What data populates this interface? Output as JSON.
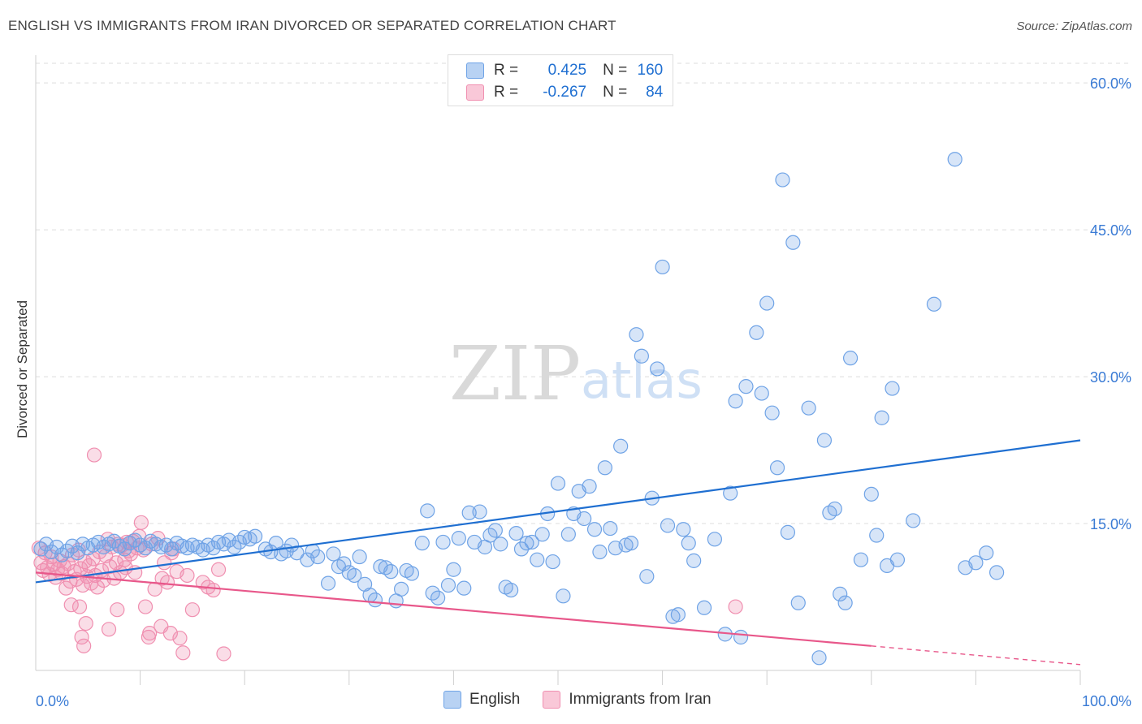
{
  "title": "ENGLISH VS IMMIGRANTS FROM IRAN DIVORCED OR SEPARATED CORRELATION CHART",
  "source": "Source: ZipAtlas.com",
  "watermark": {
    "zip": "ZIP",
    "atlas": "atlas"
  },
  "legend": {
    "rows": [
      {
        "r_label": "R =",
        "r_value": "0.425",
        "n_label": "N =",
        "n_value": "160"
      },
      {
        "r_label": "R =",
        "r_value": "-0.267",
        "n_label": "N =",
        "n_value": "84"
      }
    ]
  },
  "colors": {
    "english": "#6fa3e6",
    "english_line": "#1f6fd1",
    "iran": "#f08fb0",
    "iran_line": "#e8578a",
    "tick_text": "#3a7bd5"
  },
  "chart_data": {
    "type": "scatter",
    "title": "ENGLISH VS IMMIGRANTS FROM IRAN DIVORCED OR SEPARATED CORRELATION CHART",
    "xlabel": "",
    "ylabel": "Divorced or Separated",
    "xlim": [
      0,
      100
    ],
    "ylim": [
      0,
      62
    ],
    "x_tick_labels": {
      "left": "0.0%",
      "right": "100.0%"
    },
    "y_ticks": [
      {
        "value": 15,
        "label": "15.0%"
      },
      {
        "value": 30,
        "label": "30.0%"
      },
      {
        "value": 45,
        "label": "45.0%"
      },
      {
        "value": 60,
        "label": "60.0%"
      }
    ],
    "legend_position": "bottom-center",
    "series": [
      {
        "name": "English",
        "r": 0.425,
        "n": 160,
        "trend": {
          "x": [
            0,
            100
          ],
          "y": [
            9.0,
            23.5
          ]
        },
        "points": [
          [
            0.5,
            12.4
          ],
          [
            1,
            12.9
          ],
          [
            1.5,
            12.1
          ],
          [
            2,
            12.6
          ],
          [
            2.5,
            11.8
          ],
          [
            3,
            12.2
          ],
          [
            3.5,
            12.7
          ],
          [
            4,
            12.0
          ],
          [
            4.5,
            12.9
          ],
          [
            5,
            12.5
          ],
          [
            5.5,
            12.8
          ],
          [
            6,
            13.1
          ],
          [
            6.5,
            12.6
          ],
          [
            7,
            12.9
          ],
          [
            7.5,
            13.2
          ],
          [
            8,
            12.7
          ],
          [
            8.5,
            12.4
          ],
          [
            9,
            13.0
          ],
          [
            9.5,
            13.3
          ],
          [
            10,
            12.8
          ],
          [
            10.5,
            12.5
          ],
          [
            11,
            13.2
          ],
          [
            11.5,
            12.9
          ],
          [
            12,
            12.6
          ],
          [
            12.5,
            12.8
          ],
          [
            13,
            12.4
          ],
          [
            13.5,
            13.0
          ],
          [
            14,
            12.7
          ],
          [
            14.5,
            12.5
          ],
          [
            15,
            12.8
          ],
          [
            15.5,
            12.6
          ],
          [
            16,
            12.3
          ],
          [
            16.5,
            12.8
          ],
          [
            17,
            12.5
          ],
          [
            17.5,
            13.1
          ],
          [
            18,
            12.9
          ],
          [
            18.5,
            13.3
          ],
          [
            19,
            12.6
          ],
          [
            19.5,
            13.1
          ],
          [
            20,
            13.6
          ],
          [
            20.5,
            13.4
          ],
          [
            21,
            13.7
          ],
          [
            22,
            12.4
          ],
          [
            22.5,
            12.1
          ],
          [
            23,
            13.0
          ],
          [
            23.5,
            11.9
          ],
          [
            24,
            12.2
          ],
          [
            24.5,
            12.8
          ],
          [
            25,
            12.0
          ],
          [
            26,
            11.3
          ],
          [
            26.5,
            12.2
          ],
          [
            27,
            11.6
          ],
          [
            28,
            8.9
          ],
          [
            28.5,
            11.9
          ],
          [
            29,
            10.6
          ],
          [
            29.5,
            10.9
          ],
          [
            30,
            10.0
          ],
          [
            30.5,
            9.7
          ],
          [
            31,
            11.6
          ],
          [
            31.5,
            8.8
          ],
          [
            32,
            7.7
          ],
          [
            32.5,
            7.2
          ],
          [
            33,
            10.6
          ],
          [
            33.5,
            10.5
          ],
          [
            34,
            10.1
          ],
          [
            34.5,
            7.1
          ],
          [
            35,
            8.3
          ],
          [
            35.5,
            10.2
          ],
          [
            36,
            9.9
          ],
          [
            37,
            13.0
          ],
          [
            37.5,
            16.3
          ],
          [
            38,
            7.9
          ],
          [
            38.5,
            7.4
          ],
          [
            39,
            13.1
          ],
          [
            39.5,
            8.7
          ],
          [
            40,
            10.3
          ],
          [
            40.5,
            13.5
          ],
          [
            41,
            8.4
          ],
          [
            41.5,
            16.1
          ],
          [
            42,
            13.1
          ],
          [
            42.5,
            16.2
          ],
          [
            43,
            12.6
          ],
          [
            43.5,
            13.8
          ],
          [
            44,
            14.3
          ],
          [
            44.5,
            12.9
          ],
          [
            45,
            8.5
          ],
          [
            45.5,
            8.2
          ],
          [
            46,
            14.0
          ],
          [
            46.5,
            12.4
          ],
          [
            47,
            13.0
          ],
          [
            47.5,
            13.1
          ],
          [
            48,
            11.3
          ],
          [
            48.5,
            13.9
          ],
          [
            49,
            16.0
          ],
          [
            49.5,
            11.1
          ],
          [
            50,
            19.1
          ],
          [
            50.5,
            7.6
          ],
          [
            51,
            13.9
          ],
          [
            51.5,
            16.0
          ],
          [
            52,
            18.3
          ],
          [
            52.5,
            15.5
          ],
          [
            53,
            18.8
          ],
          [
            53.5,
            14.4
          ],
          [
            54,
            12.1
          ],
          [
            54.5,
            20.7
          ],
          [
            55,
            14.5
          ],
          [
            55.5,
            12.5
          ],
          [
            56,
            22.9
          ],
          [
            56.5,
            12.8
          ],
          [
            57,
            13.0
          ],
          [
            57.5,
            34.3
          ],
          [
            58,
            32.1
          ],
          [
            58.5,
            9.6
          ],
          [
            59,
            17.6
          ],
          [
            59.5,
            30.8
          ],
          [
            60,
            41.2
          ],
          [
            60.5,
            14.8
          ],
          [
            61,
            5.5
          ],
          [
            61.5,
            5.7
          ],
          [
            62,
            14.4
          ],
          [
            62.5,
            13.0
          ],
          [
            63,
            11.2
          ],
          [
            64,
            6.4
          ],
          [
            65,
            13.4
          ],
          [
            66,
            3.7
          ],
          [
            66.5,
            18.1
          ],
          [
            67,
            27.5
          ],
          [
            67.5,
            3.4
          ],
          [
            68,
            29.0
          ],
          [
            69,
            34.5
          ],
          [
            69.5,
            28.3
          ],
          [
            70,
            37.5
          ],
          [
            70.5,
            26.3
          ],
          [
            71,
            20.7
          ],
          [
            71.5,
            50.1
          ],
          [
            72,
            14.1
          ],
          [
            72.5,
            43.7
          ],
          [
            73,
            6.9
          ],
          [
            74,
            26.8
          ],
          [
            75,
            1.3
          ],
          [
            75.5,
            23.5
          ],
          [
            76,
            16.1
          ],
          [
            76.5,
            16.5
          ],
          [
            77,
            7.8
          ],
          [
            77.5,
            6.9
          ],
          [
            78,
            31.9
          ],
          [
            79,
            11.3
          ],
          [
            80,
            18.0
          ],
          [
            80.5,
            13.8
          ],
          [
            81,
            25.8
          ],
          [
            81.5,
            10.7
          ],
          [
            82,
            28.8
          ],
          [
            82.5,
            11.3
          ],
          [
            84,
            15.3
          ],
          [
            86,
            37.4
          ],
          [
            88,
            52.2
          ],
          [
            89,
            10.5
          ],
          [
            90,
            11.0
          ],
          [
            91,
            12.0
          ],
          [
            92,
            10.0
          ]
        ]
      },
      {
        "name": "Immigrants from Iran",
        "r": -0.267,
        "n": 84,
        "trend": {
          "x": [
            0,
            80
          ],
          "y": [
            10.0,
            2.5
          ]
        },
        "trend_dashed": {
          "x": [
            80,
            100
          ],
          "y": [
            2.5,
            0.6
          ]
        },
        "points": [
          [
            0.3,
            12.5
          ],
          [
            0.5,
            11.0
          ],
          [
            0.7,
            10.2
          ],
          [
            0.9,
            12.0
          ],
          [
            1.1,
            10.5
          ],
          [
            1.3,
            9.8
          ],
          [
            1.5,
            11.6
          ],
          [
            1.7,
            10.8
          ],
          [
            1.9,
            9.5
          ],
          [
            2.1,
            10.3
          ],
          [
            2.3,
            11.2
          ],
          [
            2.5,
            9.9
          ],
          [
            2.7,
            10.6
          ],
          [
            2.9,
            8.4
          ],
          [
            3.1,
            10.9
          ],
          [
            3.3,
            9.1
          ],
          [
            3.5,
            11.8
          ],
          [
            3.7,
            10.1
          ],
          [
            3.9,
            9.3
          ],
          [
            4.1,
            12.3
          ],
          [
            4.3,
            10.4
          ],
          [
            4.5,
            8.7
          ],
          [
            4.7,
            11.1
          ],
          [
            4.9,
            9.6
          ],
          [
            5.1,
            10.7
          ],
          [
            5.3,
            8.9
          ],
          [
            5.5,
            11.4
          ],
          [
            5.7,
            9.7
          ],
          [
            5.9,
            8.5
          ],
          [
            6.1,
            12.1
          ],
          [
            6.3,
            10.2
          ],
          [
            6.5,
            9.2
          ],
          [
            6.7,
            11.7
          ],
          [
            6.9,
            13.4
          ],
          [
            7.1,
            10.6
          ],
          [
            7.3,
            12.6
          ],
          [
            7.5,
            9.4
          ],
          [
            7.7,
            11.0
          ],
          [
            7.9,
            12.9
          ],
          [
            8.1,
            10.0
          ],
          [
            8.3,
            12.8
          ],
          [
            8.5,
            11.3
          ],
          [
            8.7,
            13.1
          ],
          [
            8.9,
            12.2
          ],
          [
            9.1,
            11.9
          ],
          [
            9.3,
            13.2
          ],
          [
            9.5,
            10.0
          ],
          [
            9.7,
            12.5
          ],
          [
            9.9,
            13.7
          ],
          [
            10.1,
            15.1
          ],
          [
            10.3,
            12.3
          ],
          [
            10.5,
            6.5
          ],
          [
            10.8,
            3.4
          ],
          [
            11.1,
            12.9
          ],
          [
            11.4,
            8.3
          ],
          [
            11.7,
            13.5
          ],
          [
            12.0,
            4.5
          ],
          [
            12.3,
            11.0
          ],
          [
            12.6,
            9.0
          ],
          [
            12.9,
            3.8
          ],
          [
            13.2,
            12.4
          ],
          [
            13.5,
            10.1
          ],
          [
            13.8,
            3.3
          ],
          [
            14.1,
            1.8
          ],
          [
            14.5,
            9.7
          ],
          [
            15,
            6.2
          ],
          [
            16,
            9.0
          ],
          [
            16.5,
            8.5
          ],
          [
            17,
            8.2
          ],
          [
            17.5,
            10.3
          ],
          [
            18,
            1.7
          ],
          [
            3.4,
            6.7
          ],
          [
            4.2,
            6.5
          ],
          [
            4.4,
            3.4
          ],
          [
            4.6,
            2.5
          ],
          [
            4.8,
            4.8
          ],
          [
            5.6,
            22.0
          ],
          [
            7.0,
            4.2
          ],
          [
            7.8,
            6.2
          ],
          [
            8.6,
            10.5
          ],
          [
            10.9,
            3.8
          ],
          [
            12.1,
            9.4
          ],
          [
            13.0,
            12.0
          ],
          [
            67.0,
            6.5
          ]
        ]
      }
    ]
  }
}
